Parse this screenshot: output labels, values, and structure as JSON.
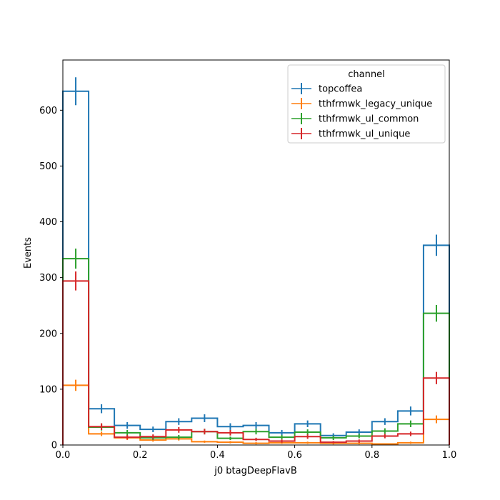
{
  "chart_data": {
    "type": "step",
    "xlabel": "j0 btagDeepFlavB",
    "ylabel": "Events",
    "xlim": [
      0,
      1
    ],
    "ylim": [
      0,
      690
    ],
    "x_ticks": [
      "0.0",
      "0.2",
      "0.4",
      "0.6",
      "0.8",
      "1.0"
    ],
    "y_ticks": [
      "0",
      "100",
      "200",
      "300",
      "400",
      "500",
      "600"
    ],
    "bin_edges": [
      0,
      0.0667,
      0.1333,
      0.2,
      0.2667,
      0.3333,
      0.4,
      0.4667,
      0.5333,
      0.6,
      0.6667,
      0.7333,
      0.8,
      0.8667,
      0.9333,
      1.0
    ],
    "legend": {
      "title": "channel",
      "placement": "top-right"
    },
    "series": [
      {
        "name": "topcoffea",
        "color": "#1f77b4",
        "values": [
          634,
          65,
          35,
          28,
          42,
          48,
          33,
          35,
          22,
          38,
          17,
          23,
          42,
          61,
          358
        ],
        "errors": [
          25,
          8,
          6,
          5,
          6,
          7,
          6,
          6,
          5,
          6,
          4,
          5,
          6,
          8,
          19
        ]
      },
      {
        "name": "tthfrmwk_legacy_unique",
        "color": "#ff7f0e",
        "values": [
          107,
          20,
          13,
          9,
          11,
          6,
          5,
          3,
          4,
          4,
          3,
          3,
          2,
          4,
          46
        ],
        "errors": [
          10,
          4,
          4,
          3,
          3,
          2,
          2,
          2,
          2,
          2,
          2,
          2,
          1,
          2,
          7
        ]
      },
      {
        "name": "tthfrmwk_ul_common",
        "color": "#2ca02c",
        "values": [
          334,
          32,
          22,
          13,
          14,
          24,
          12,
          24,
          14,
          23,
          13,
          16,
          25,
          38,
          236
        ],
        "errors": [
          18,
          6,
          5,
          4,
          4,
          5,
          3,
          5,
          4,
          5,
          4,
          4,
          5,
          6,
          15
        ]
      },
      {
        "name": "tthfrmwk_ul_unique",
        "color": "#d62728",
        "values": [
          294,
          33,
          14,
          15,
          27,
          24,
          22,
          10,
          7,
          15,
          5,
          7,
          16,
          20,
          120
        ],
        "errors": [
          17,
          6,
          4,
          4,
          5,
          5,
          5,
          3,
          3,
          4,
          2,
          3,
          4,
          4,
          11
        ]
      }
    ]
  }
}
